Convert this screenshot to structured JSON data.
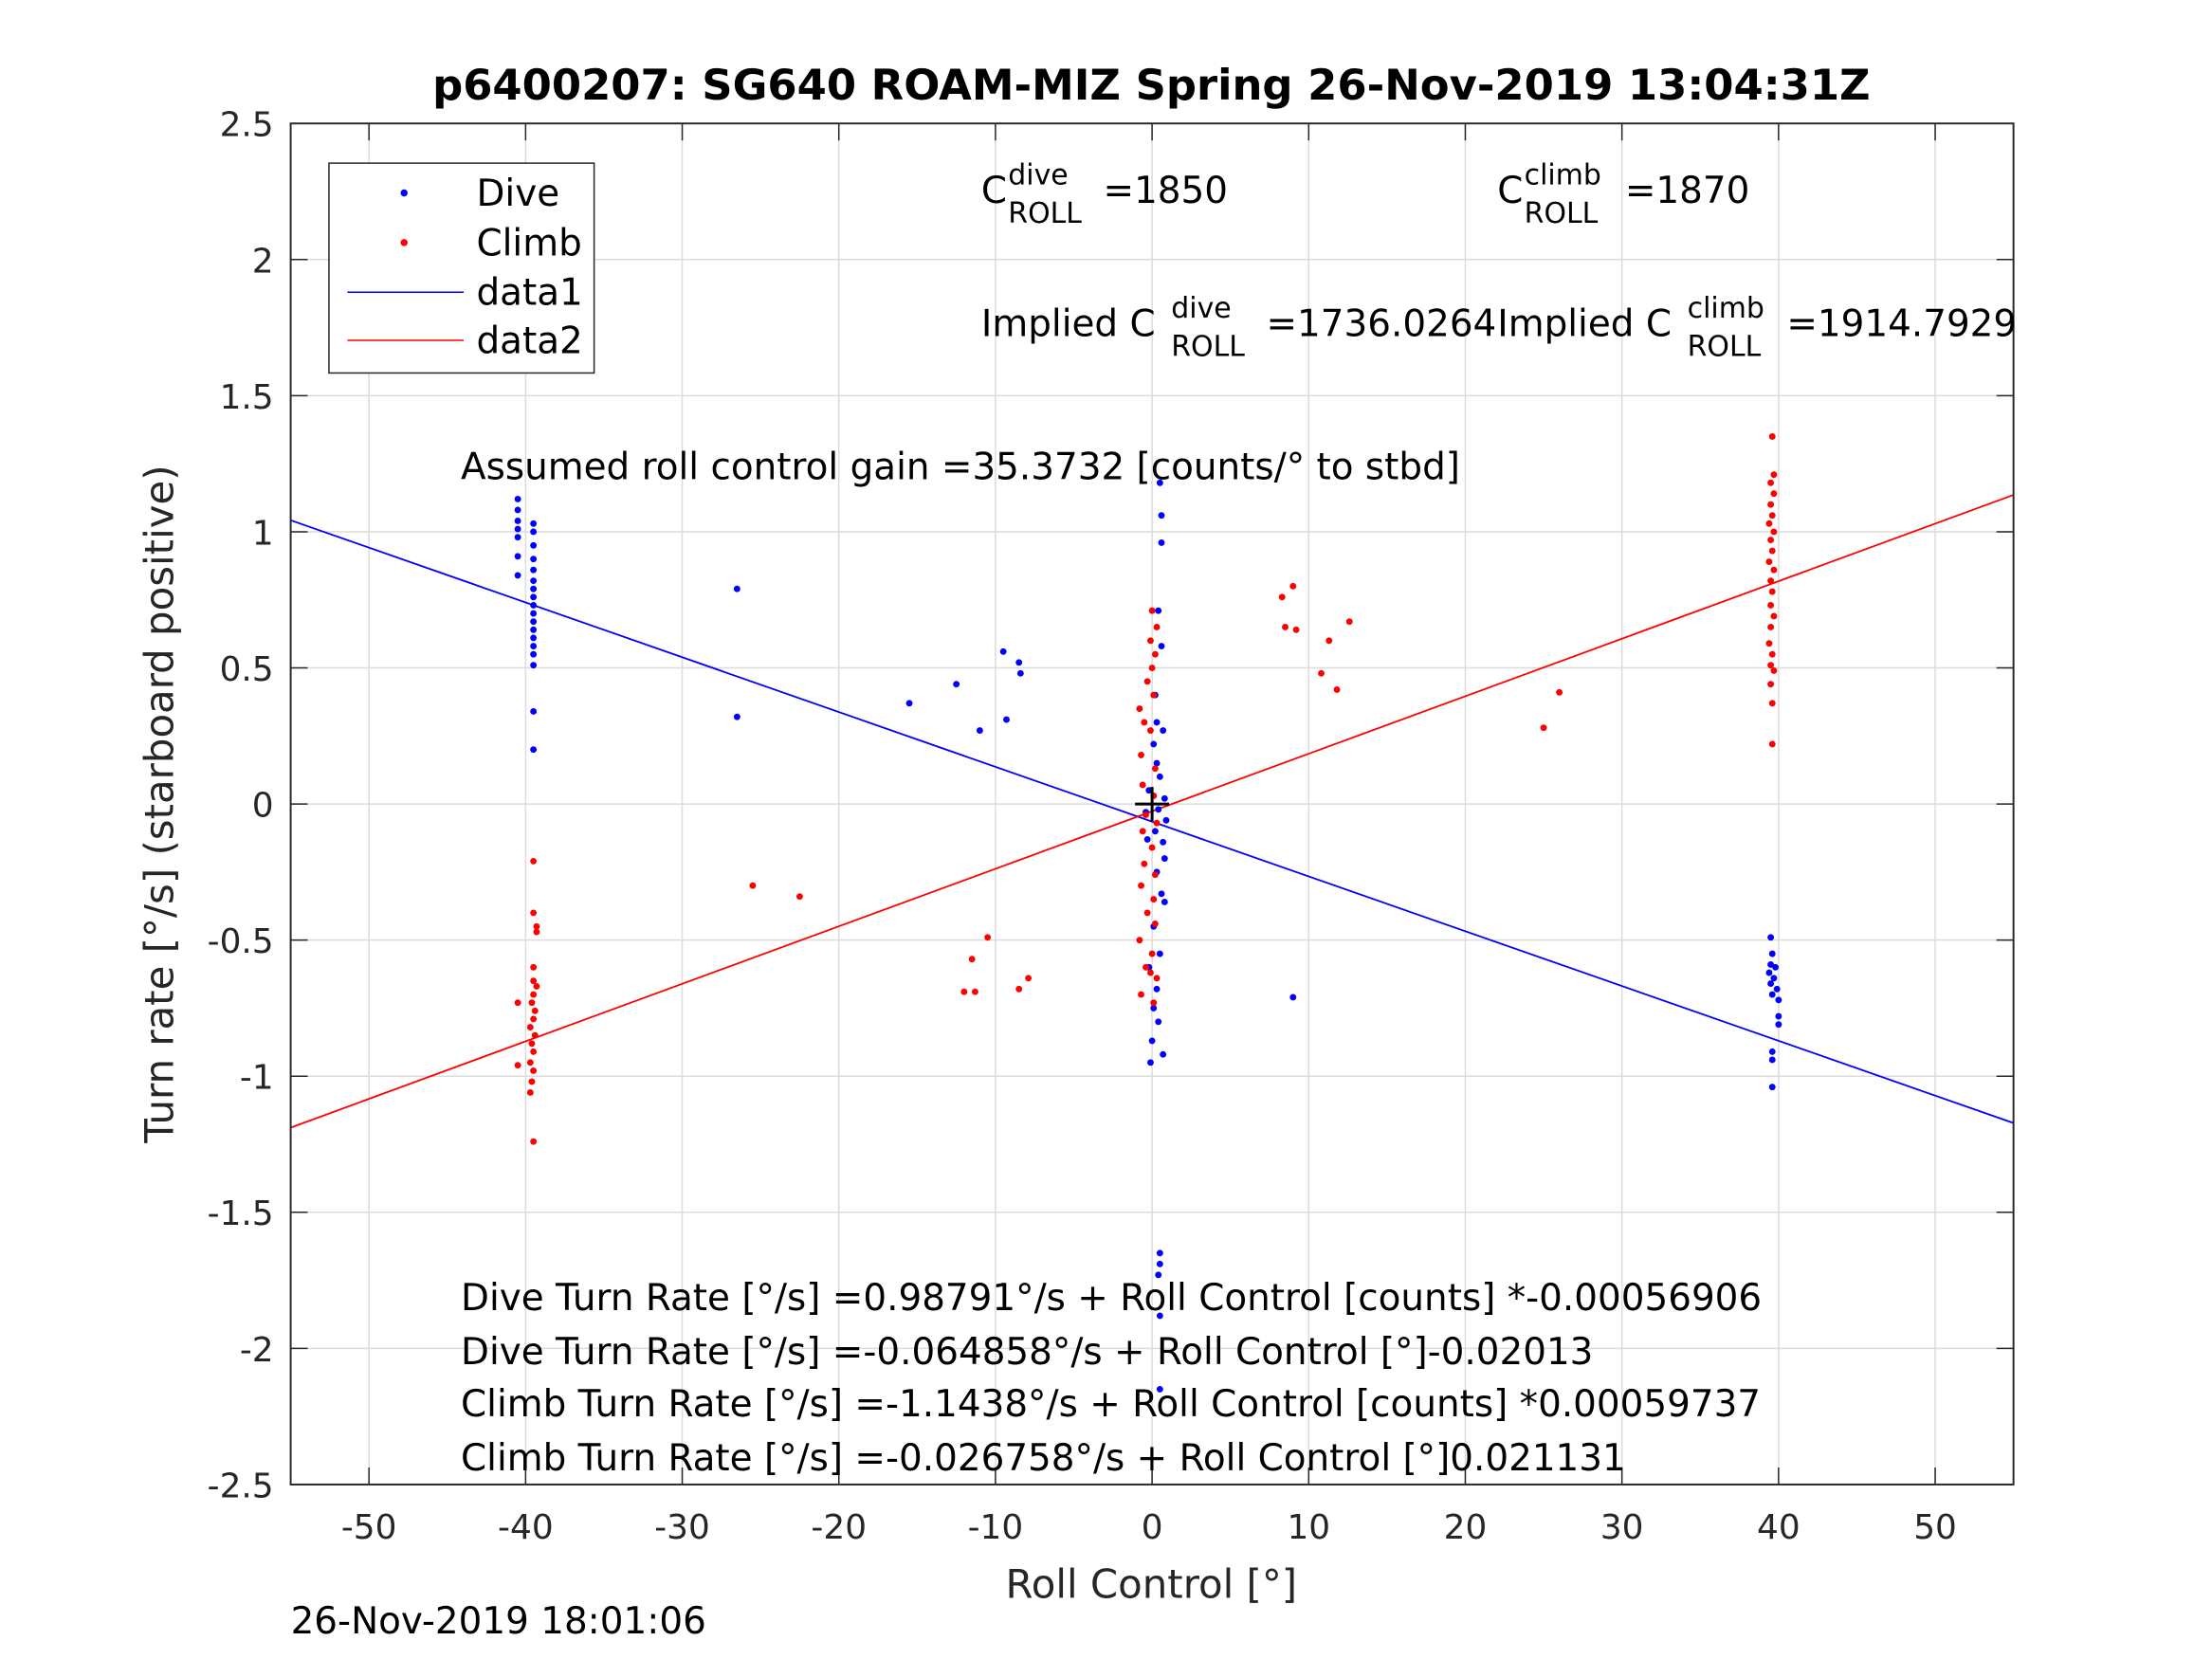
{
  "chart_data": {
    "type": "scatter",
    "title": "p6400207: SG640 ROAM-MIZ Spring 26-Nov-2019 13:04:31Z",
    "xlabel": "Roll Control [°]",
    "ylabel": "Turn rate [°/s] (starboard positive)",
    "xlim": [
      -55,
      55
    ],
    "ylim": [
      -2.5,
      2.5
    ],
    "xticks": [
      -50,
      -40,
      -30,
      -20,
      -10,
      0,
      10,
      20,
      30,
      40,
      50
    ],
    "xtick_labels": [
      "-50",
      "-40",
      "-30",
      "-20",
      "-10",
      "0",
      "10",
      "20",
      "30",
      "40",
      "50"
    ],
    "yticks": [
      2.5,
      2,
      1.5,
      1,
      0.5,
      0,
      -0.5,
      -1,
      -1.5,
      -2,
      -2.5
    ],
    "ytick_labels": [
      "2.5",
      "2",
      "1.5",
      "1",
      "0.5",
      "0",
      "-0.5",
      "-1",
      "-1.5",
      "-2",
      "-2.5"
    ],
    "grid": true,
    "legend": {
      "placement": "top-left",
      "entries": [
        "Dive",
        "Climb",
        "data1",
        "data2"
      ]
    },
    "series": [
      {
        "name": "Dive",
        "kind": "points",
        "color": "#0000ff",
        "points": [
          [
            -40.5,
            1.12
          ],
          [
            -40.5,
            1.08
          ],
          [
            -40.5,
            1.04
          ],
          [
            -40.5,
            1.01
          ],
          [
            -40.5,
            0.98
          ],
          [
            -40.5,
            0.91
          ],
          [
            -40.5,
            0.84
          ],
          [
            -39.5,
            1.03
          ],
          [
            -39.5,
            1.0
          ],
          [
            -39.5,
            0.95
          ],
          [
            -39.5,
            0.9
          ],
          [
            -39.5,
            0.86
          ],
          [
            -39.5,
            0.82
          ],
          [
            -39.5,
            0.79
          ],
          [
            -39.5,
            0.76
          ],
          [
            -39.5,
            0.73
          ],
          [
            -39.5,
            0.7
          ],
          [
            -39.5,
            0.67
          ],
          [
            -39.5,
            0.64
          ],
          [
            -39.5,
            0.61
          ],
          [
            -39.5,
            0.58
          ],
          [
            -39.5,
            0.55
          ],
          [
            -39.5,
            0.51
          ],
          [
            -39.5,
            0.34
          ],
          [
            -39.5,
            0.2
          ],
          [
            -26.5,
            0.79
          ],
          [
            -26.5,
            0.32
          ],
          [
            -15.5,
            0.37
          ],
          [
            -12.5,
            0.44
          ],
          [
            -11,
            0.27
          ],
          [
            -9.5,
            0.56
          ],
          [
            -9.3,
            0.31
          ],
          [
            -8.5,
            0.52
          ],
          [
            -8.4,
            0.48
          ],
          [
            9,
            -0.71
          ],
          [
            0.5,
            1.18
          ],
          [
            0.6,
            1.06
          ],
          [
            0.6,
            0.96
          ],
          [
            0.4,
            0.71
          ],
          [
            0.6,
            0.58
          ],
          [
            0.2,
            0.4
          ],
          [
            0.3,
            0.3
          ],
          [
            0.7,
            0.27
          ],
          [
            0.1,
            0.22
          ],
          [
            0.3,
            0.15
          ],
          [
            0.5,
            0.1
          ],
          [
            -0.2,
            0.05
          ],
          [
            0.8,
            0.02
          ],
          [
            0.4,
            -0.02
          ],
          [
            -0.4,
            -0.03
          ],
          [
            0.9,
            -0.06
          ],
          [
            0.2,
            -0.1
          ],
          [
            0.7,
            -0.14
          ],
          [
            -0.3,
            -0.13
          ],
          [
            0.8,
            -0.2
          ],
          [
            0.3,
            -0.25
          ],
          [
            0.6,
            -0.33
          ],
          [
            0.8,
            -0.36
          ],
          [
            0.1,
            -0.45
          ],
          [
            0.5,
            -0.55
          ],
          [
            -0.2,
            -0.6
          ],
          [
            0.3,
            -0.68
          ],
          [
            0.1,
            -0.75
          ],
          [
            0.4,
            -0.8
          ],
          [
            0.0,
            -0.87
          ],
          [
            0.7,
            -0.92
          ],
          [
            -0.1,
            -0.95
          ],
          [
            0.5,
            -1.65
          ],
          [
            0.5,
            -1.69
          ],
          [
            0.4,
            -1.73
          ],
          [
            0.5,
            -1.88
          ],
          [
            0.5,
            -2.15
          ],
          [
            39.5,
            -0.49
          ],
          [
            39.6,
            -0.55
          ],
          [
            39.5,
            -0.59
          ],
          [
            39.8,
            -0.6
          ],
          [
            39.4,
            -0.62
          ],
          [
            39.7,
            -0.64
          ],
          [
            39.5,
            -0.66
          ],
          [
            39.9,
            -0.68
          ],
          [
            39.6,
            -0.7
          ],
          [
            40,
            -0.72
          ],
          [
            40,
            -0.78
          ],
          [
            40,
            -0.81
          ],
          [
            39.6,
            -0.91
          ],
          [
            39.6,
            -0.94
          ],
          [
            39.6,
            -1.04
          ]
        ]
      },
      {
        "name": "Climb",
        "kind": "points",
        "color": "#ff0000",
        "points": [
          [
            -39.5,
            -0.21
          ],
          [
            -39.5,
            -0.4
          ],
          [
            -39.3,
            -0.45
          ],
          [
            -39.3,
            -0.47
          ],
          [
            -39.5,
            -0.6
          ],
          [
            -39.5,
            -0.65
          ],
          [
            -39.3,
            -0.67
          ],
          [
            -39.5,
            -0.7
          ],
          [
            -39.6,
            -0.73
          ],
          [
            -39.4,
            -0.76
          ],
          [
            -39.5,
            -0.79
          ],
          [
            -39.7,
            -0.82
          ],
          [
            -39.4,
            -0.85
          ],
          [
            -39.6,
            -0.88
          ],
          [
            -39.5,
            -0.91
          ],
          [
            -39.7,
            -0.95
          ],
          [
            -39.5,
            -0.98
          ],
          [
            -39.6,
            -1.02
          ],
          [
            -39.7,
            -1.06
          ],
          [
            -39.5,
            -1.24
          ],
          [
            -40.5,
            -0.73
          ],
          [
            -40.5,
            -0.96
          ],
          [
            -25.5,
            -0.3
          ],
          [
            -22.5,
            -0.34
          ],
          [
            -11.5,
            -0.57
          ],
          [
            -10.5,
            -0.49
          ],
          [
            -12,
            -0.69
          ],
          [
            -11.3,
            -0.69
          ],
          [
            -8.5,
            -0.68
          ],
          [
            -7.9,
            -0.64
          ],
          [
            8.3,
            0.76
          ],
          [
            9,
            0.8
          ],
          [
            8.5,
            0.65
          ],
          [
            9.2,
            0.64
          ],
          [
            10.8,
            0.48
          ],
          [
            11.3,
            0.6
          ],
          [
            11.8,
            0.42
          ],
          [
            12.6,
            0.67
          ],
          [
            25,
            0.28
          ],
          [
            26,
            0.41
          ],
          [
            0.0,
            0.71
          ],
          [
            0.3,
            0.65
          ],
          [
            -0.1,
            0.6
          ],
          [
            0.2,
            0.55
          ],
          [
            0.0,
            0.5
          ],
          [
            -0.3,
            0.45
          ],
          [
            0.1,
            0.4
          ],
          [
            -0.8,
            0.35
          ],
          [
            -0.5,
            0.3
          ],
          [
            -0.1,
            0.27
          ],
          [
            -0.7,
            0.18
          ],
          [
            0.2,
            0.13
          ],
          [
            -0.6,
            0.07
          ],
          [
            0.1,
            0.03
          ],
          [
            -0.4,
            -0.04
          ],
          [
            0.3,
            -0.07
          ],
          [
            -0.6,
            -0.1
          ],
          [
            0.0,
            -0.16
          ],
          [
            -0.5,
            -0.22
          ],
          [
            0.2,
            -0.26
          ],
          [
            -0.7,
            -0.3
          ],
          [
            0.1,
            -0.35
          ],
          [
            -0.3,
            -0.4
          ],
          [
            0.2,
            -0.44
          ],
          [
            -0.8,
            -0.5
          ],
          [
            0.0,
            -0.55
          ],
          [
            -0.4,
            -0.6
          ],
          [
            0.3,
            -0.64
          ],
          [
            -0.7,
            -0.7
          ],
          [
            0.1,
            -0.73
          ],
          [
            -0.1,
            -0.62
          ],
          [
            39.6,
            1.35
          ],
          [
            39.7,
            1.21
          ],
          [
            39.5,
            1.18
          ],
          [
            39.7,
            1.14
          ],
          [
            39.5,
            1.1
          ],
          [
            39.6,
            1.06
          ],
          [
            39.4,
            1.03
          ],
          [
            39.7,
            1.0
          ],
          [
            39.5,
            0.97
          ],
          [
            39.6,
            0.93
          ],
          [
            39.4,
            0.89
          ],
          [
            39.7,
            0.86
          ],
          [
            39.5,
            0.82
          ],
          [
            39.6,
            0.78
          ],
          [
            39.5,
            0.73
          ],
          [
            39.7,
            0.69
          ],
          [
            39.5,
            0.65
          ],
          [
            39.4,
            0.59
          ],
          [
            39.6,
            0.55
          ],
          [
            39.5,
            0.51
          ],
          [
            39.7,
            0.49
          ],
          [
            39.5,
            0.44
          ],
          [
            39.6,
            0.37
          ],
          [
            39.6,
            0.22
          ]
        ]
      },
      {
        "name": "data1",
        "kind": "line",
        "color": "#0000ff",
        "intercept": -0.064858,
        "slope": -0.02013
      },
      {
        "name": "data2",
        "kind": "line",
        "color": "#ff0000",
        "intercept": -0.026758,
        "slope": 0.021131
      }
    ],
    "origin_marker": [
      0,
      0
    ],
    "annotations": {
      "c_dive": {
        "C": "C",
        "sup": "dive",
        "sub": "ROLL",
        "val": "=1850"
      },
      "c_climb": {
        "C": "C",
        "sup": "climb",
        "sub": "ROLL",
        "val": "=1870"
      },
      "implied_dive": {
        "pre": "Implied C",
        "sup": "dive",
        "sub": "ROLL",
        "val": "=1736.0264"
      },
      "implied_climb": {
        "pre": "Implied C",
        "sup": "climb",
        "sub": "ROLL",
        "val": "=1914.7929"
      },
      "gain": "Assumed roll control gain =35.3732 [counts/° to stbd]",
      "eq": [
        "Dive Turn Rate [°/s] =0.98791°/s + Roll Control [counts] *-0.00056906",
        "Dive Turn Rate [°/s] =-0.064858°/s + Roll Control [°]-0.02013",
        "Climb Turn Rate [°/s] =-1.1438°/s + Roll Control [counts] *0.00059737",
        "Climb Turn Rate [°/s] =-0.026758°/s + Roll Control [°]0.021131"
      ]
    },
    "timestamp": "26-Nov-2019 18:01:06"
  }
}
